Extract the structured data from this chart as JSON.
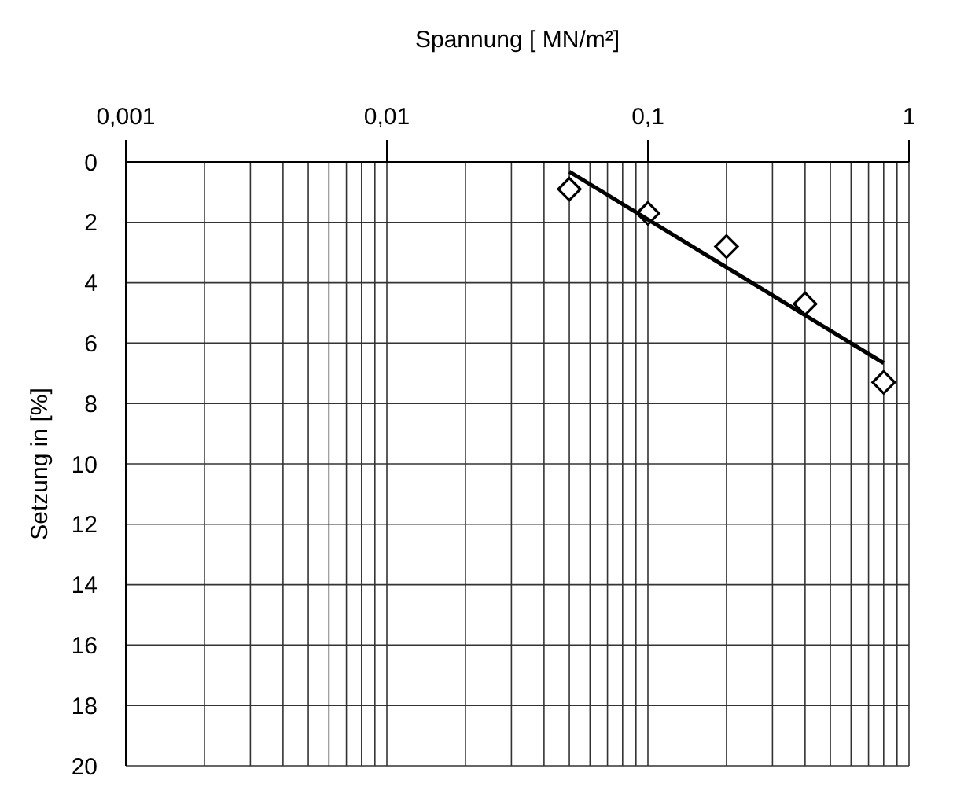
{
  "chart_data": {
    "type": "scatter",
    "xlabel": "Spannung [ MN/m²]",
    "ylabel": "Setzung in [%]",
    "log": "x",
    "grid": true,
    "marker": "diamond",
    "xlim": [
      0.001,
      1
    ],
    "xticks": [
      {
        "value": 0.001,
        "label": "0,001"
      },
      {
        "value": 0.01,
        "label": "0,01"
      },
      {
        "value": 0.1,
        "label": "0,1"
      },
      1
    ],
    "ylim": [
      20,
      0
    ],
    "yticks": [
      0,
      2,
      4,
      6,
      8,
      10,
      12,
      14,
      16,
      18,
      20
    ],
    "series": [
      {
        "color": "#000000",
        "x": [
          0.05,
          0.1,
          0.2,
          0.4,
          0.8
        ],
        "values": [
          0.9,
          1.7,
          2.8,
          4.7,
          7.3
        ]
      },
      {
        "type": "line",
        "color": "#000000",
        "x": [
          0.05,
          0.8
        ],
        "values": [
          0.32,
          6.66
        ],
        "marker": "none"
      }
    ]
  }
}
